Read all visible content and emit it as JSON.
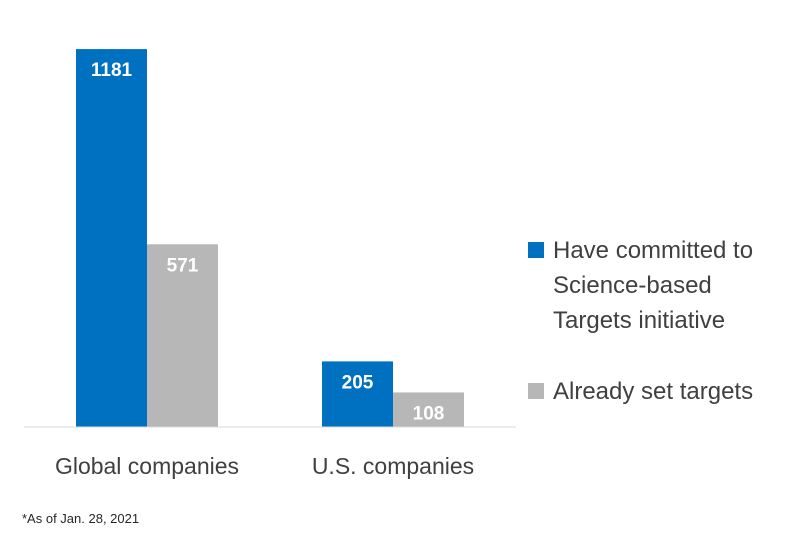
{
  "chart_data": {
    "type": "bar",
    "categories": [
      "Global companies",
      "U.S. companies"
    ],
    "series": [
      {
        "name": "Have committed to Science-based Targets initiative",
        "values": [
          1181,
          205
        ],
        "color": "#0070C0"
      },
      {
        "name": "Already set targets",
        "values": [
          571,
          108
        ],
        "color": "#B7B7B7"
      }
    ],
    "ylim": [
      0,
      1250
    ],
    "grid": false,
    "legend_position": "right",
    "data_labels": true,
    "title": "",
    "xlabel": "",
    "ylabel": ""
  },
  "legend": {
    "items": [
      {
        "label": "Have committed to Science-based Targets initiative",
        "color": "#0070C0"
      },
      {
        "label": "Already set targets",
        "color": "#B7B7B7"
      }
    ]
  },
  "footnote": "*As of Jan. 28, 2021"
}
